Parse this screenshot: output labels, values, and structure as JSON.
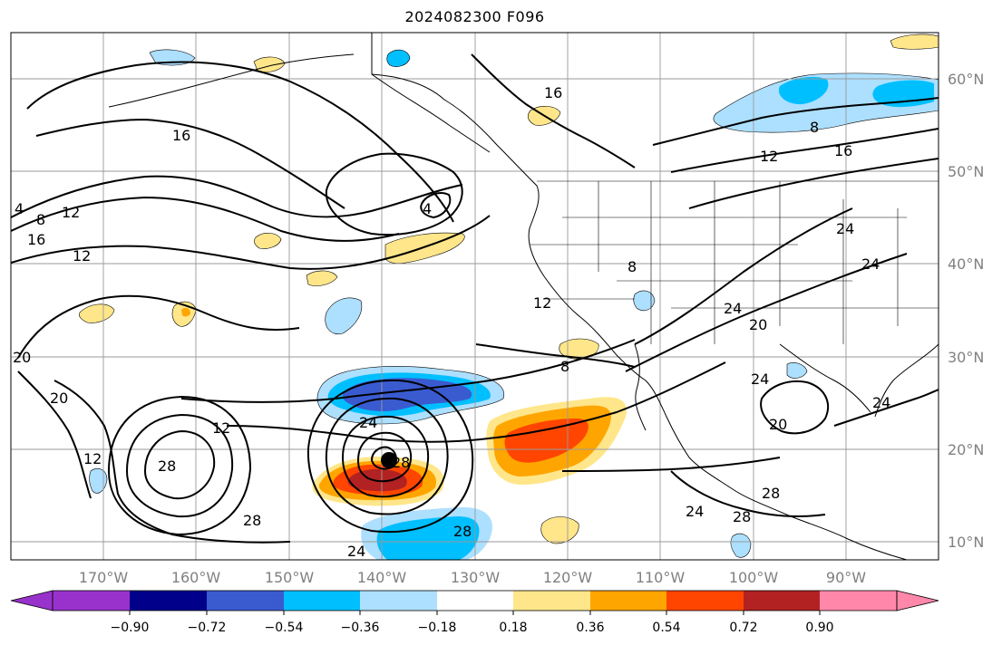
{
  "title": "2024082300 F096",
  "lon_labels": [
    "170°W",
    "160°W",
    "150°W",
    "140°W",
    "130°W",
    "120°W",
    "110°W",
    "100°W",
    "90°W"
  ],
  "lat_labels": [
    "60°N",
    "50°N",
    "40°N",
    "30°N",
    "20°N",
    "10°N"
  ],
  "colorbar": {
    "tick_labels": [
      "−0.90",
      "−0.72",
      "−0.54",
      "−0.36",
      "−0.18",
      "0.18",
      "0.36",
      "0.54",
      "0.72",
      "0.90"
    ],
    "colors": [
      "#9932CC",
      "#00008B",
      "#3A5BD0",
      "#00BFFF",
      "#ADDFFF",
      "#FFFFFF",
      "#FFE68A",
      "#FFA500",
      "#FF4500",
      "#B22222",
      "#FF88AA"
    ]
  },
  "contour_labels": {
    "l4a": "4",
    "l8a": "8",
    "l12a": "12",
    "l16a": "16",
    "l12b": "12",
    "l20a": "20",
    "l20b": "20",
    "l12c": "12",
    "l28a": "28",
    "l12d": "12",
    "l28b": "28",
    "l16b": "16",
    "l4b": "4",
    "l24a": "24",
    "l28c": "28",
    "l24b": "24",
    "l28d": "28",
    "l8b": "8",
    "l16c": "16",
    "l8c": "8",
    "l12e": "12",
    "l16d": "16",
    "l24c": "24",
    "l24d": "24",
    "l8d": "8",
    "l24e": "24",
    "l20c": "20",
    "l24f": "24",
    "l20d": "20",
    "l24g": "24",
    "l28e": "28",
    "l24h": "24",
    "l28f": "28",
    "l12f": "12"
  },
  "colors": {
    "land_line": "#000000",
    "grid": "#999999",
    "contour": "#000000"
  }
}
